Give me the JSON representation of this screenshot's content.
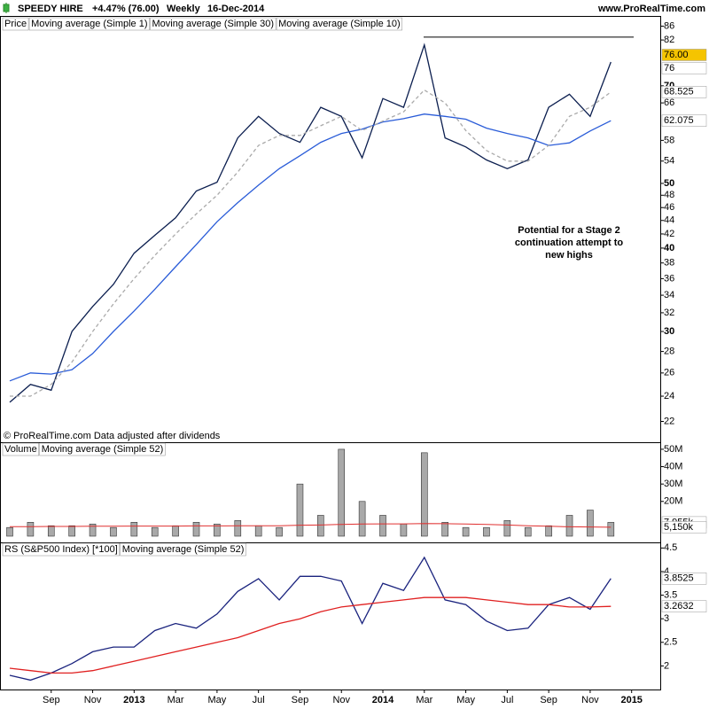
{
  "header": {
    "title": "SPEEDY HIRE",
    "change": "+4.47% (76.00)",
    "period": "Weekly",
    "date": "16-Dec-2014",
    "site": "www.ProRealTime.com"
  },
  "chart_data": [
    {
      "type": "line",
      "panel_label": "Price",
      "log_scale": true,
      "ylim": [
        20.6,
        88
      ],
      "yticks": [
        22,
        24,
        26,
        28,
        30,
        32,
        34,
        36,
        38,
        40,
        42,
        44,
        46,
        48,
        50,
        54,
        58,
        66,
        70,
        82,
        86
      ],
      "last_price": {
        "value": 76,
        "label": "76.00"
      },
      "last_price_color": "#f5c400",
      "hline": 82.8,
      "note": "© ProRealTime.com  Data adjusted after dividends",
      "annotation": [
        "Potential for a Stage 2",
        "continuation attempt to",
        "new highs"
      ],
      "series": [
        {
          "name": "Moving average (Simple 1)",
          "color": "#0b1e4f",
          "last": 76,
          "values": [
            23.5,
            25,
            24.5,
            30,
            32.7,
            35.3,
            39.3,
            41.8,
            44.4,
            48.7,
            50.2,
            58.5,
            63,
            59.4,
            57.6,
            65,
            63,
            54.6,
            67,
            65,
            80.6,
            58.5,
            56.7,
            54.2,
            52.6,
            54.2,
            65,
            68,
            63,
            76,
            null
          ]
        },
        {
          "name": "Moving average (Simple 30)",
          "color": "#2a5cd8",
          "last": 62.075,
          "values": [
            25.3,
            26,
            25.9,
            26.3,
            27.8,
            30,
            32.2,
            34.7,
            37.5,
            40.5,
            43.8,
            46.8,
            49.7,
            52.6,
            55,
            57.6,
            59.4,
            60.3,
            61.8,
            62.5,
            63.5,
            63,
            62.4,
            60.5,
            59.4,
            58.5,
            57,
            57.5,
            59.9,
            62.075,
            null
          ]
        },
        {
          "name": "Moving average (Simple 10)",
          "color": "#aaaaaa",
          "dashed": true,
          "last": 68.525,
          "values": [
            24,
            24,
            25,
            27,
            30,
            33,
            36,
            39,
            42,
            45,
            48,
            52,
            57,
            59,
            59,
            61,
            63,
            60,
            62,
            64,
            69,
            66,
            60,
            56,
            54,
            54,
            57,
            63,
            65,
            68.525,
            null
          ]
        }
      ]
    },
    {
      "type": "bar",
      "ylim": [
        0,
        52000000
      ],
      "yticks": [
        {
          "value": 20000000,
          "label": "20M"
        },
        {
          "value": 30000000,
          "label": "30M"
        },
        {
          "value": 40000000,
          "label": "40M"
        },
        {
          "value": 50000000,
          "label": "50M"
        }
      ],
      "series": [
        {
          "name": "Volume",
          "type": "bar",
          "color": "#a9a9a9",
          "last": {
            "value": 7955000,
            "label": "7,955k"
          },
          "values": [
            5000000,
            8000000,
            6000000,
            6000000,
            7000000,
            5000000,
            8000000,
            5000000,
            6000000,
            8000000,
            7000000,
            9000000,
            6000000,
            5000000,
            30000000,
            12000000,
            50000000,
            20000000,
            12000000,
            7000000,
            48000000,
            8000000,
            5000000,
            5000000,
            9000000,
            5000000,
            6000000,
            12000000,
            15000000,
            7955000,
            null
          ]
        },
        {
          "name": "Moving average (Simple 52)",
          "type": "line",
          "color": "#e03030",
          "last": {
            "value": 5150000,
            "label": "5,150k"
          },
          "values": [
            5500000,
            5500000,
            5600000,
            5600000,
            5700000,
            5700000,
            5800000,
            5800000,
            5800000,
            5900000,
            5900000,
            6000000,
            6000000,
            6000000,
            6300000,
            6400000,
            6800000,
            7000000,
            7100000,
            7100000,
            7300000,
            7200000,
            7000000,
            6800000,
            6400000,
            6000000,
            5700000,
            5400000,
            5300000,
            5150000,
            null
          ]
        }
      ]
    },
    {
      "type": "line",
      "ylim": [
        1.5,
        4.6
      ],
      "yticks": [
        2,
        2.5,
        3,
        3.5,
        4,
        4.5
      ],
      "categories": [
        null,
        null,
        "Sep",
        null,
        "Nov",
        null,
        "2013",
        null,
        "Mar",
        null,
        "May",
        null,
        "Jul",
        null,
        "Sep",
        null,
        "Nov",
        null,
        "2014",
        null,
        "Mar",
        null,
        "May",
        null,
        "Jul",
        null,
        "Sep",
        null,
        "Nov",
        null,
        "2015"
      ],
      "series": [
        {
          "name": "RS (S&P500 Index) [*100]",
          "color": "#1a237e",
          "last": 3.8525,
          "values": [
            1.8,
            1.7,
            1.85,
            2.05,
            2.3,
            2.4,
            2.4,
            2.75,
            2.9,
            2.8,
            3.1,
            3.58,
            3.85,
            3.4,
            3.9,
            3.9,
            3.8,
            2.9,
            3.75,
            3.6,
            4.3,
            3.4,
            3.3,
            2.95,
            2.75,
            2.8,
            3.3,
            3.45,
            3.2,
            3.8525,
            null
          ]
        },
        {
          "name": "Moving average (Simple 52)",
          "color": "#e02020",
          "last": 3.2632,
          "values": [
            1.95,
            1.9,
            1.85,
            1.85,
            1.9,
            2.0,
            2.1,
            2.2,
            2.3,
            2.4,
            2.5,
            2.6,
            2.75,
            2.9,
            3.0,
            3.15,
            3.25,
            3.3,
            3.35,
            3.4,
            3.45,
            3.45,
            3.45,
            3.4,
            3.35,
            3.3,
            3.3,
            3.25,
            3.25,
            3.2632,
            null
          ]
        }
      ]
    }
  ]
}
